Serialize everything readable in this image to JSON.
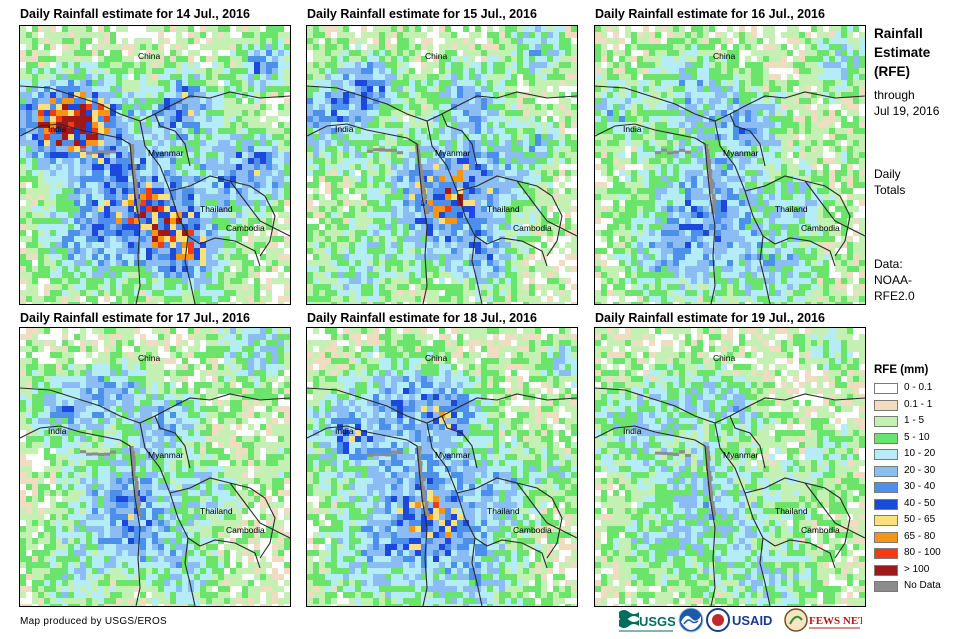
{
  "panels": [
    {
      "title": "Daily Rainfall estimate for 14 Jul., 2016",
      "intensity": 0.85,
      "seed": 14
    },
    {
      "title": "Daily Rainfall estimate for 15 Jul., 2016",
      "intensity": 0.75,
      "seed": 15
    },
    {
      "title": "Daily Rainfall estimate for 16 Jul., 2016",
      "intensity": 0.6,
      "seed": 16
    },
    {
      "title": "Daily Rainfall estimate for 17 Jul., 2016",
      "intensity": 0.7,
      "seed": 17
    },
    {
      "title": "Daily Rainfall estimate for 18 Jul., 2016",
      "intensity": 0.65,
      "seed": 18
    },
    {
      "title": "Daily Rainfall estimate for 19 Jul., 2016",
      "intensity": 0.5,
      "seed": 19
    }
  ],
  "place_labels": {
    "china": "China",
    "india": "India",
    "myanmar": "Myanmar",
    "thailand": "Thailand",
    "cambodia": "Cambodia"
  },
  "sidebar": {
    "title_line1": "Rainfall",
    "title_line2": "Estimate",
    "title_line3": "(RFE)",
    "through_line1": "through",
    "through_line2": "Jul 19, 2016",
    "daily_line1": "Daily",
    "daily_line2": "Totals",
    "data_line1": "Data:",
    "data_line2": "NOAA-",
    "data_line3": "RFE2.0"
  },
  "legend": {
    "title": "RFE (mm)",
    "items": [
      {
        "label": "0 - 0.1",
        "color": "#ffffff"
      },
      {
        "label": "0.1 - 1",
        "color": "#f0dcc0"
      },
      {
        "label": "1 - 5",
        "color": "#c4f0b4"
      },
      {
        "label": "5 - 10",
        "color": "#6ae46a"
      },
      {
        "label": "10 - 20",
        "color": "#b4ecf8"
      },
      {
        "label": "20 - 30",
        "color": "#8cbcf4"
      },
      {
        "label": "30 - 40",
        "color": "#4c90ec"
      },
      {
        "label": "40 - 50",
        "color": "#1c48dc"
      },
      {
        "label": "50 - 65",
        "color": "#fce07c"
      },
      {
        "label": "65 - 80",
        "color": "#f89414"
      },
      {
        "label": "80 - 100",
        "color": "#f03c10"
      },
      {
        "label": "> 100",
        "color": "#a01818"
      },
      {
        "label": "No Data",
        "color": "#8c8c8c"
      }
    ]
  },
  "footer": {
    "credit": "Map produced by USGS/EROS"
  },
  "logos": {
    "usgs": "USGS",
    "noaa": "NOAA",
    "usaid": "USAID",
    "fewsnet": "FEWS NET"
  }
}
